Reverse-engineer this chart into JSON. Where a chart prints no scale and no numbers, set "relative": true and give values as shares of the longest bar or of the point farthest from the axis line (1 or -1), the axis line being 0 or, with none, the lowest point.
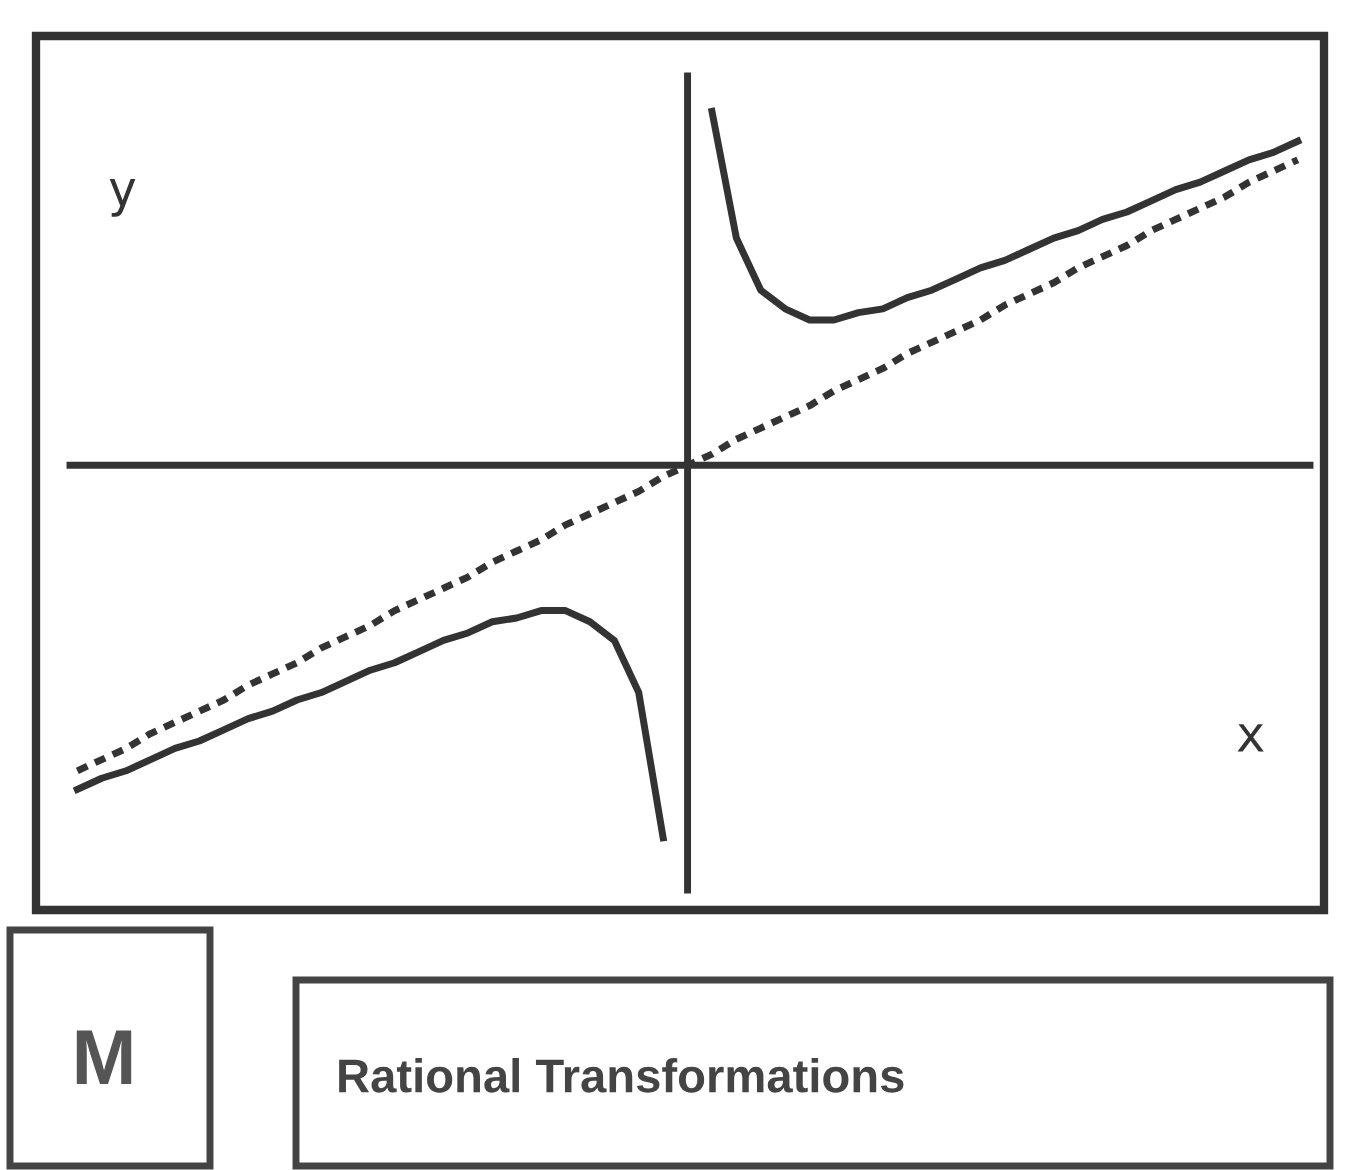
{
  "chart_data": {
    "type": "line",
    "title": "Rational Transformations",
    "xlabel": "x",
    "ylabel": "y",
    "annotations": [
      "M"
    ],
    "relative": true,
    "categories": [
      null,
      null,
      null,
      null,
      null,
      null,
      null,
      null,
      null,
      null,
      null,
      null,
      null,
      null,
      null,
      null,
      null,
      null,
      null,
      null,
      null,
      null,
      null,
      null,
      null,
      null,
      null,
      null,
      null,
      null,
      null,
      null,
      null,
      null,
      null,
      null,
      null,
      null,
      null,
      null,
      null,
      null,
      null,
      null,
      null,
      null,
      null,
      null,
      null,
      null,
      null
    ],
    "series": [
      {
        "color": "#333333",
        "line_style": "solid",
        "values": [
          -0.87,
          -0.84,
          -0.82,
          -0.79,
          -0.76,
          -0.74,
          -0.71,
          -0.68,
          -0.66,
          -0.63,
          -0.61,
          -0.58,
          -0.55,
          -0.53,
          -0.5,
          -0.47,
          -0.45,
          -0.42,
          -0.41,
          -0.39,
          -0.39,
          -0.42,
          -0.47,
          -0.61,
          -1,
          null,
          0.95,
          0.61,
          0.47,
          0.42,
          0.39,
          0.39,
          0.41,
          0.42,
          0.45,
          0.47,
          0.5,
          0.53,
          0.55,
          0.58,
          0.61,
          0.63,
          0.66,
          0.68,
          0.71,
          0.74,
          0.76,
          0.79,
          0.82,
          0.84,
          0.87
        ]
      },
      {
        "color": "#333333",
        "line_style": "dashed",
        "values": [
          -0.82,
          -0.79,
          -0.76,
          -0.72,
          -0.69,
          -0.66,
          -0.63,
          -0.59,
          -0.56,
          -0.53,
          -0.49,
          -0.46,
          -0.43,
          -0.39,
          -0.36,
          -0.33,
          -0.3,
          -0.26,
          -0.23,
          -0.2,
          -0.16,
          -0.13,
          -0.1,
          -0.07,
          -0.03,
          0,
          0.03,
          0.07,
          0.1,
          0.13,
          0.16,
          0.2,
          0.23,
          0.26,
          0.3,
          0.33,
          0.36,
          0.39,
          0.43,
          0.46,
          0.49,
          0.53,
          0.56,
          0.59,
          0.63,
          0.66,
          0.69,
          0.72,
          0.76,
          0.79,
          0.82
        ]
      }
    ]
  }
}
